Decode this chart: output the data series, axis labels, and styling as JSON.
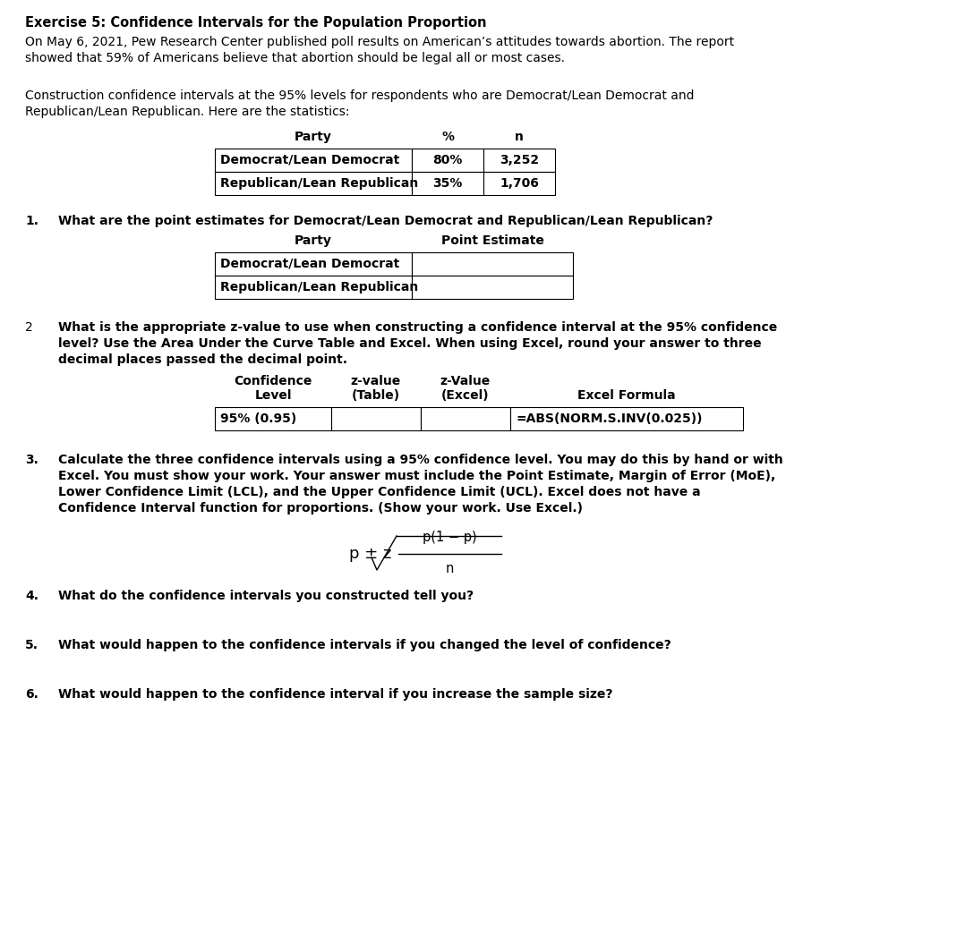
{
  "title_bold": "Exercise 5: Confidence Intervals for the Population Proportion",
  "intro_line1": "On May 6, 2021, Pew Research Center published poll results on American’s attitudes towards abortion. The report",
  "intro_line2": "showed that 59% of Americans believe that abortion should be legal all or most cases.",
  "construction_line1": "Construction confidence intervals at the 95% levels for respondents who are Democrat/Lean Democrat and",
  "construction_line2": "Republican/Lean Republican. Here are the statistics:",
  "table1_rows": [
    [
      "Democrat/Lean Democrat",
      "80%",
      "3,252"
    ],
    [
      "Republican/Lean Republican",
      "35%",
      "1,706"
    ]
  ],
  "q1_text": "What are the point estimates for Democrat/Lean Democrat and Republican/Lean Republican?",
  "table2_rows": [
    [
      "Democrat/Lean Democrat",
      ""
    ],
    [
      "Republican/Lean Republican",
      ""
    ]
  ],
  "q2_text_line1": "What is the appropriate z-value to use when constructing a confidence interval at the 95% confidence",
  "q2_text_line2": "level? Use the Area Under the Curve Table and Excel. When using Excel, round your answer to three",
  "q2_text_line3": "decimal places passed the decimal point.",
  "table3_row": [
    "95% (0.95)",
    "",
    "",
    "=ABS(NORM.S.INV(0.025))"
  ],
  "q3_text_line1": "Calculate the three confidence intervals using a 95% confidence level. You may do this by hand or with",
  "q3_text_line2": "Excel. You must show your work. Your answer must include the Point Estimate, Margin of Error (MoE),",
  "q3_text_line3": "Lower Confidence Limit (LCL), and the Upper Confidence Limit (UCL). Excel does not have a",
  "q3_text_line4": "Confidence Interval function for proportions. (Show your work. Use Excel.)",
  "q4_text": "What do the confidence intervals you constructed tell you?",
  "q5_text": "What would happen to the confidence intervals if you changed the level of confidence?",
  "q6_text": "What would happen to the confidence interval if you increase the sample size?",
  "bg_color": "#ffffff",
  "text_color": "#000000",
  "font_family": "DejaVu Sans",
  "fs_title": 10.5,
  "fs_body": 10.0,
  "fs_bold_q": 10.0
}
